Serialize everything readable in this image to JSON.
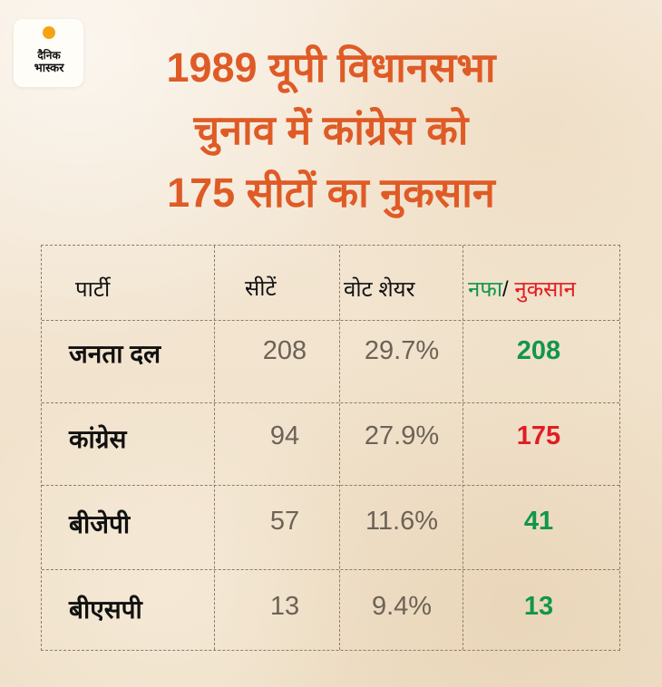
{
  "logo": {
    "line1": "दैनिक",
    "line2": "भास्कर",
    "colors": {
      "sun": "#f6a313",
      "text": "#111111"
    }
  },
  "title": {
    "line1": "1989 यूपी विधानसभा",
    "line2": "चुनाव में कांग्रेस को",
    "line3": "175 सीटों का नुकसान",
    "color": "#df5b26"
  },
  "table": {
    "headers": {
      "party": "पार्टी",
      "seats": "सीटें",
      "vote_share": "वोट शेयर",
      "gain": "नफा",
      "slash": "/",
      "loss": "नुकसान"
    },
    "rows": [
      {
        "party": "जनता दल",
        "seats": "208",
        "vote_share": "29.7%",
        "change": "208",
        "change_type": "gain"
      },
      {
        "party": "कांग्रेस",
        "seats": "94",
        "vote_share": "27.9%",
        "change": "175",
        "change_type": "loss"
      },
      {
        "party": "बीजेपी",
        "seats": "57",
        "vote_share": "11.6%",
        "change": "41",
        "change_type": "gain"
      },
      {
        "party": "बीएसपी",
        "seats": "13",
        "vote_share": "9.4%",
        "change": "13",
        "change_type": "gain"
      }
    ],
    "colors": {
      "gain": "#12964b",
      "loss": "#e21c23",
      "text": "#111111",
      "muted": "#6c6257",
      "grid": "#8f7c66"
    }
  }
}
